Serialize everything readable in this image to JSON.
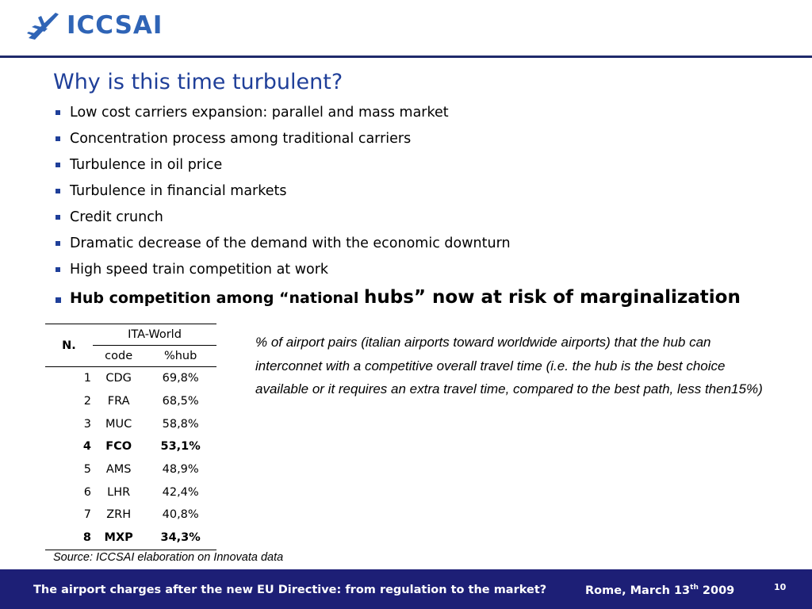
{
  "header": {
    "logo_text": "ICCSAI",
    "logo_icon": "airplane-icon",
    "brand_color": "#2f64b6"
  },
  "slide": {
    "title": "Why is this time turbulent?",
    "bullets": [
      "Low cost carriers expansion: parallel and mass market",
      "Concentration process among traditional carriers",
      "Turbulence in oil price",
      "Turbulence in financial markets",
      "Credit crunch",
      "Dramatic decrease of the demand with the economic downturn",
      "High speed train competition at work"
    ],
    "hub_bullet": {
      "part1": "Hub competition among “national ",
      "part2": "hubs” now at risk of marginalization"
    }
  },
  "table": {
    "col_n": "N.",
    "group_header": "ITA-World",
    "col_code": "code",
    "col_hub": "%hub",
    "rows": [
      {
        "n": "1",
        "code": "CDG",
        "hub": "69,8%",
        "highlight": false
      },
      {
        "n": "2",
        "code": "FRA",
        "hub": "68,5%",
        "highlight": false
      },
      {
        "n": "3",
        "code": "MUC",
        "hub": "58,8%",
        "highlight": false
      },
      {
        "n": "4",
        "code": "FCO",
        "hub": "53,1%",
        "highlight": true
      },
      {
        "n": "5",
        "code": "AMS",
        "hub": "48,9%",
        "highlight": false
      },
      {
        "n": "6",
        "code": "LHR",
        "hub": "42,4%",
        "highlight": false
      },
      {
        "n": "7",
        "code": "ZRH",
        "hub": "40,8%",
        "highlight": false
      },
      {
        "n": "8",
        "code": "MXP",
        "hub": "34,3%",
        "highlight": true
      }
    ]
  },
  "note": "% of airport pairs (italian airports toward worldwide airports) that the hub can interconnet  with a competitive overall travel time  (i.e. the hub is the best choice available or it requires an extra travel time, compared to the best path, less then15%)",
  "source": "Source: ICCSAI elaboration on Innovata data",
  "footer": {
    "text": "The airport charges after the new EU Directive: from regulation to the market?",
    "date_prefix": "Rome, March 13",
    "date_sup": "th",
    "date_year": " 2009",
    "page": "10",
    "bg_color": "#1d1f76"
  }
}
